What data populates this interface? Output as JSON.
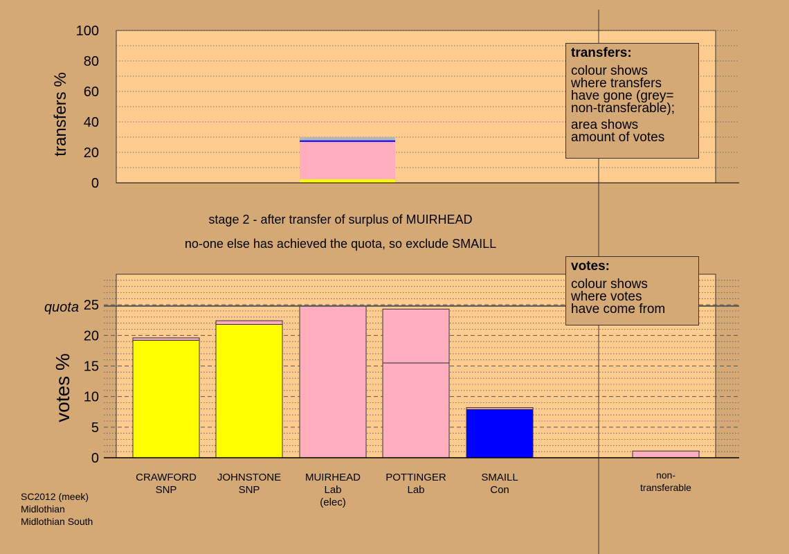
{
  "chart_data": [
    {
      "type": "bar",
      "ylabel": "transfers %",
      "ylim": [
        0,
        100
      ],
      "yticks": [
        0,
        20,
        40,
        60,
        80,
        100
      ],
      "grid": "dotted horizontal",
      "categories": [
        "CRAWFORD SNP",
        "JOHNSTONE SNP",
        "MUIRHEAD Lab (elec)",
        "POTTINGER Lab",
        "SMAILL Con",
        "non-transferable"
      ],
      "bars": [
        {
          "category": "MUIRHEAD Lab (elec)",
          "stacks": [
            {
              "to": "CRAWFORD SNP",
              "value": 2.3,
              "color": "#ffff00"
            },
            {
              "to": "POTTINGER Lab",
              "value": 24.6,
              "color": "#ffaec0"
            },
            {
              "to": "SMAILL Con",
              "value": 1.0,
              "color": "#0000ff"
            },
            {
              "to": "non-transferable",
              "value": 2.2,
              "color": "#b5b5b5"
            }
          ]
        }
      ],
      "legend": {
        "title": "transfers:",
        "lines1": [
          "colour shows",
          "where transfers",
          "have gone (grey=",
          "non-transferable);"
        ],
        "lines2": [
          "area shows",
          "amount of votes"
        ],
        "position": "top-right"
      }
    },
    {
      "type": "bar",
      "ylabel": "votes %",
      "ylim": [
        0,
        30
      ],
      "yticks": [
        0,
        5,
        10,
        15,
        20,
        25
      ],
      "quota": 24.8,
      "quota_label": "quota",
      "grid": "dashed horizontal",
      "categories": [
        "CRAWFORD SNP",
        "JOHNSTONE SNP",
        "MUIRHEAD Lab (elec)",
        "POTTINGER Lab",
        "SMAILL Con",
        "non-transferable"
      ],
      "bars": [
        {
          "category": "CRAWFORD SNP",
          "name": [
            "CRAWFORD",
            "SNP"
          ],
          "stacks": [
            {
              "from": "first preferences",
              "value": 19.2,
              "color": "#ffff00"
            },
            {
              "from": "MUIRHEAD",
              "value": 0.4,
              "color": "#ffaec0"
            }
          ]
        },
        {
          "category": "JOHNSTONE SNP",
          "name": [
            "JOHNSTONE",
            "SNP"
          ],
          "stacks": [
            {
              "from": "first preferences",
              "value": 21.8,
              "color": "#ffff00"
            },
            {
              "from": "MUIRHEAD",
              "value": 0.6,
              "color": "#ffaec0"
            }
          ]
        },
        {
          "category": "MUIRHEAD Lab (elec)",
          "name": [
            "MUIRHEAD",
            "Lab",
            "(elec)"
          ],
          "stacks": [
            {
              "from": "first preferences",
              "value": 24.8,
              "color": "#ffaec0"
            }
          ]
        },
        {
          "category": "POTTINGER Lab",
          "name": [
            "POTTINGER",
            "Lab"
          ],
          "stacks": [
            {
              "from": "first preferences",
              "value": 15.5,
              "color": "#ffaec0"
            },
            {
              "from": "MUIRHEAD",
              "value": 8.8,
              "color": "#ffaec0"
            }
          ]
        },
        {
          "category": "SMAILL Con",
          "name": [
            "SMAILL",
            "Con"
          ],
          "stacks": [
            {
              "from": "first preferences",
              "value": 7.9,
              "color": "#0000ff"
            },
            {
              "from": "MUIRHEAD",
              "value": 0.3,
              "color": "#ffaec0"
            }
          ]
        },
        {
          "category": "non-transferable",
          "name": [
            "non-",
            "transferable"
          ],
          "stacks": [
            {
              "from": "MUIRHEAD",
              "value": 1.1,
              "color": "#ffaec0"
            }
          ]
        }
      ],
      "legend": {
        "title": "votes:",
        "lines1": [
          "colour shows",
          "where votes",
          "have come from"
        ],
        "position": "top-right"
      }
    }
  ],
  "stage_text": {
    "line1": "stage 2 - after transfer of surplus of MUIRHEAD",
    "line2": "no-one else has achieved the quota, so exclude SMAILL"
  },
  "source": {
    "line1": "SC2012 (meek)",
    "line2": "Midlothian",
    "line3": "Midlothian South"
  },
  "colors": {
    "background": "#d4a976",
    "plot_background": "#ffcc90",
    "snp": "#ffff00",
    "lab": "#ffaec0",
    "con": "#0000ff",
    "nontransferable": "#b5b5b5"
  }
}
